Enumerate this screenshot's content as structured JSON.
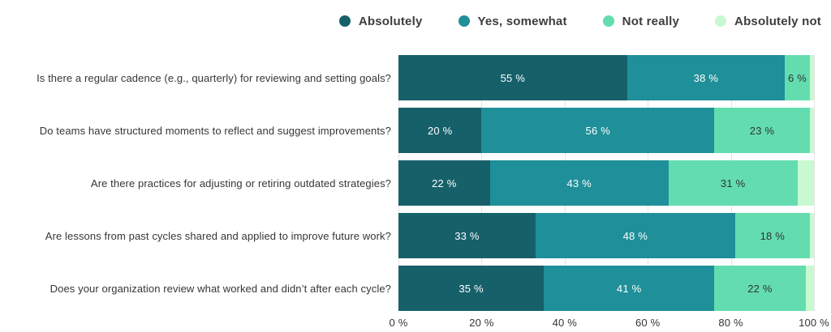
{
  "legend": {
    "position": "top-right",
    "items": [
      {
        "label": "Absolutely",
        "color": "#16606a"
      },
      {
        "label": "Yes, somewhat",
        "color": "#1f8f99"
      },
      {
        "label": "Not really",
        "color": "#63ddb0"
      },
      {
        "label": "Absolutely not",
        "color": "#c8f9d1"
      }
    ]
  },
  "chart_data": {
    "type": "bar",
    "orientation": "horizontal",
    "stacked": true,
    "unit": "%",
    "xlim": [
      0,
      100
    ],
    "grid": true,
    "gridline_color": "#e4e4e4",
    "x_ticks": [
      {
        "value": 0,
        "label": "0 %"
      },
      {
        "value": 20,
        "label": "20 %"
      },
      {
        "value": 40,
        "label": "40 %"
      },
      {
        "value": 60,
        "label": "60 %"
      },
      {
        "value": 80,
        "label": "80 %"
      },
      {
        "value": 100,
        "label": "100 %"
      }
    ],
    "categories": [
      "Is there a regular cadence (e.g., quarterly) for reviewing and setting goals?",
      "Do teams have structured moments to reflect and suggest improvements?",
      "Are there practices for adjusting or retiring outdated strategies?",
      "Are lessons from past cycles shared and applied to improve future work?",
      "Does your organization review what worked and didn’t after each cycle?"
    ],
    "series": [
      {
        "name": "Absolutely",
        "color": "#16606a",
        "label_color": "#ffffff",
        "values": [
          55,
          20,
          22,
          33,
          35
        ]
      },
      {
        "name": "Yes, somewhat",
        "color": "#1f8f99",
        "label_color": "#ffffff",
        "values": [
          38,
          56,
          43,
          48,
          41
        ]
      },
      {
        "name": "Not really",
        "color": "#63ddb0",
        "label_color": "#2e3436",
        "values": [
          6,
          23,
          31,
          18,
          22
        ]
      },
      {
        "name": "Absolutely not",
        "color": "#c8f9d1",
        "label_color": "#2e3436",
        "values": [
          1,
          1,
          4,
          1,
          2
        ]
      }
    ],
    "data_labels": [
      [
        "55 %",
        "38 %",
        "6 %",
        ""
      ],
      [
        "20 %",
        "56 %",
        "23 %",
        ""
      ],
      [
        "22 %",
        "43 %",
        "31 %",
        ""
      ],
      [
        "33 %",
        "48 %",
        "18 %",
        ""
      ],
      [
        "35 %",
        "41 %",
        "22 %",
        ""
      ]
    ]
  }
}
